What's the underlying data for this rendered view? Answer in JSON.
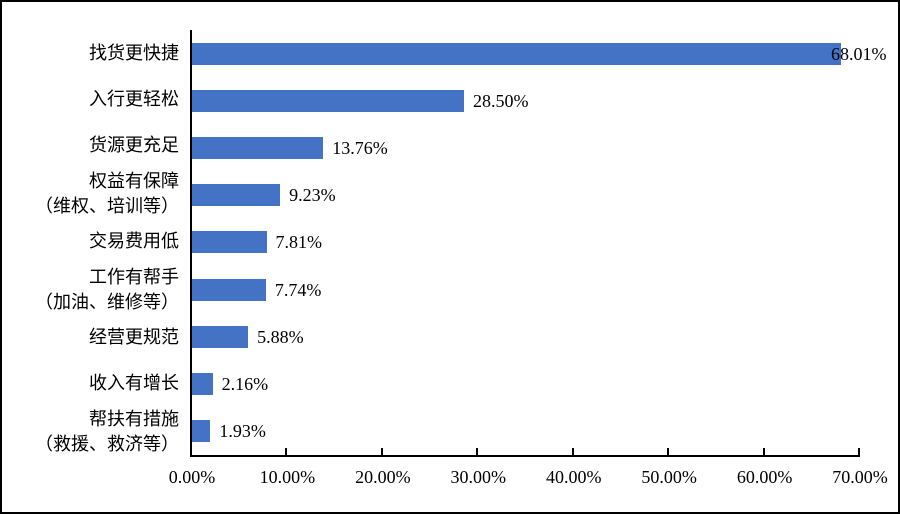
{
  "chart_data": {
    "type": "bar",
    "orientation": "horizontal",
    "title": "",
    "xlabel": "",
    "ylabel": "",
    "grid": false,
    "legend": false,
    "xlim": [
      0,
      70
    ],
    "categories": [
      "找货更快捷",
      "入行更轻松",
      "货源更充足",
      "权益有保障\n（维权、培训等）",
      "交易费用低",
      "工作有帮手\n（加油、维修等）",
      "经营更规范",
      "收入有增长",
      "帮扶有措施\n（救援、救济等）"
    ],
    "values": [
      68.01,
      28.5,
      13.76,
      9.23,
      7.81,
      7.74,
      5.88,
      2.16,
      1.93
    ],
    "data_labels": [
      "68.01%",
      "28.50%",
      "13.76%",
      "9.23%",
      "7.81%",
      "7.74%",
      "5.88%",
      "2.16%",
      "1.93%"
    ],
    "x_tick_values": [
      0,
      10,
      20,
      30,
      40,
      50,
      60,
      70
    ],
    "x_tick_labels": [
      "0.00%",
      "10.00%",
      "20.00%",
      "30.00%",
      "40.00%",
      "50.00%",
      "60.00%",
      "70.00%"
    ],
    "bar_color": "#4472C4",
    "axis_color": "#000000",
    "text_color": "#000000",
    "background_color": "#ffffff"
  }
}
